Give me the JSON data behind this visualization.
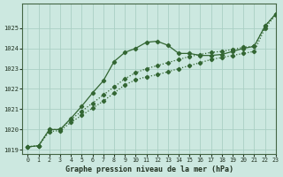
{
  "xlabel": "Graphe pression niveau de la mer (hPa)",
  "xlim": [
    -0.5,
    23
  ],
  "ylim": [
    1018.8,
    1026.2
  ],
  "yticks": [
    1019,
    1020,
    1021,
    1022,
    1023,
    1024,
    1025
  ],
  "xticks": [
    0,
    1,
    2,
    3,
    4,
    5,
    6,
    7,
    8,
    9,
    10,
    11,
    12,
    13,
    14,
    15,
    16,
    17,
    18,
    19,
    20,
    21,
    22,
    23
  ],
  "bg_color": "#cce8e0",
  "grid_color": "#aacfc4",
  "line_color": "#336633",
  "series1_x": [
    0,
    1,
    2,
    3,
    4,
    5,
    6,
    7,
    8,
    9,
    10,
    11,
    12,
    13,
    14,
    15,
    16,
    17,
    18,
    19,
    20,
    21,
    22,
    23
  ],
  "series1_y": [
    1019.15,
    1019.2,
    1020.0,
    1020.0,
    1020.55,
    1021.15,
    1021.8,
    1022.4,
    1023.35,
    1023.8,
    1024.0,
    1024.3,
    1024.35,
    1024.15,
    1023.75,
    1023.75,
    1023.65,
    1023.65,
    1023.7,
    1023.85,
    1024.0,
    1024.1,
    1025.1,
    1025.7
  ],
  "series2_x": [
    0,
    1,
    2,
    3,
    4,
    5,
    6,
    7,
    8,
    9,
    10,
    11,
    12,
    13,
    14,
    15,
    16,
    17,
    18,
    19,
    20,
    21,
    22,
    23
  ],
  "series2_y": [
    1019.15,
    1019.2,
    1020.0,
    1020.0,
    1020.5,
    1020.9,
    1021.3,
    1021.7,
    1022.1,
    1022.5,
    1022.8,
    1023.0,
    1023.15,
    1023.3,
    1023.45,
    1023.6,
    1023.7,
    1023.8,
    1023.85,
    1023.95,
    1024.05,
    1024.1,
    1025.1,
    1025.7
  ],
  "series3_x": [
    0,
    1,
    2,
    3,
    4,
    5,
    6,
    7,
    8,
    9,
    10,
    11,
    12,
    13,
    14,
    15,
    16,
    17,
    18,
    19,
    20,
    21,
    22,
    23
  ],
  "series3_y": [
    1019.15,
    1019.2,
    1019.9,
    1019.95,
    1020.35,
    1020.7,
    1021.05,
    1021.4,
    1021.8,
    1022.2,
    1022.45,
    1022.6,
    1022.7,
    1022.85,
    1023.0,
    1023.15,
    1023.3,
    1023.45,
    1023.55,
    1023.65,
    1023.75,
    1023.85,
    1025.0,
    1025.65
  ]
}
